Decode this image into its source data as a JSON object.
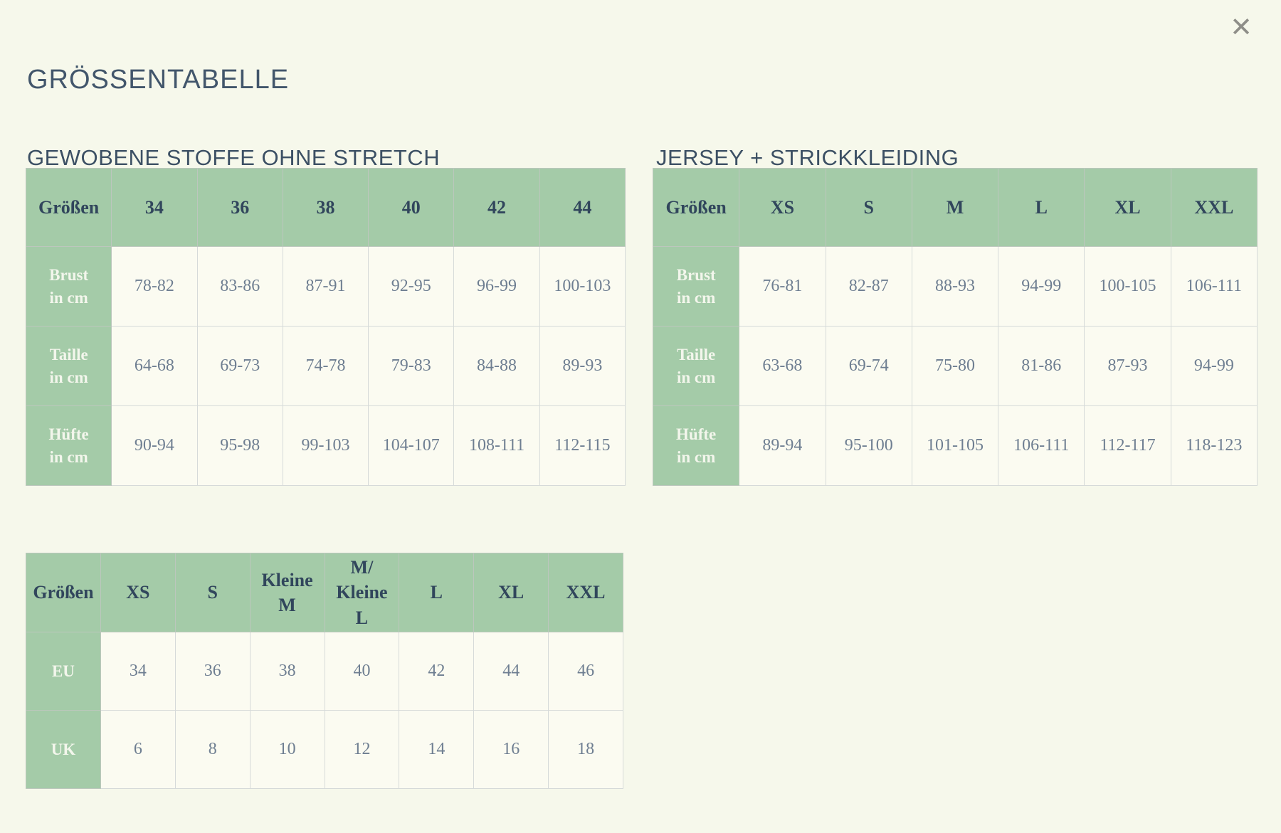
{
  "modal": {
    "title": "GRÖSSENTABELLE",
    "close_glyph": "✕"
  },
  "colors": {
    "header_green": "#a4cba8",
    "text_navy": "#33475c",
    "text_value": "#6e7e91",
    "background": "#f6f8eb"
  },
  "tables": [
    {
      "title": "GEWOBENE STOFFE OHNE STRETCH",
      "corner_label": "Größen",
      "columns": [
        "34",
        "36",
        "38",
        "40",
        "42",
        "44"
      ],
      "rows": [
        {
          "label": "Brust\nin cm",
          "values": [
            "78-82",
            "83-86",
            "87-91",
            "92-95",
            "96-99",
            "100-103"
          ]
        },
        {
          "label": "Taille\nin cm",
          "values": [
            "64-68",
            "69-73",
            "74-78",
            "79-83",
            "84-88",
            "89-93"
          ]
        },
        {
          "label": "Hüfte\nin cm",
          "values": [
            "90-94",
            "95-98",
            "99-103",
            "104-107",
            "108-111",
            "112-115"
          ]
        }
      ]
    },
    {
      "title": "JERSEY + STRICKKLEIDING",
      "corner_label": "Größen",
      "columns": [
        "XS",
        "S",
        "M",
        "L",
        "XL",
        "XXL"
      ],
      "rows": [
        {
          "label": "Brust\nin cm",
          "values": [
            "76-81",
            "82-87",
            "88-93",
            "94-99",
            "100-105",
            "106-111"
          ]
        },
        {
          "label": "Taille\nin cm",
          "values": [
            "63-68",
            "69-74",
            "75-80",
            "81-86",
            "87-93",
            "94-99"
          ]
        },
        {
          "label": "Hüfte\nin cm",
          "values": [
            "89-94",
            "95-100",
            "101-105",
            "106-111",
            "112-117",
            "118-123"
          ]
        }
      ]
    },
    {
      "corner_label": "Größen",
      "columns": [
        "XS",
        "S",
        "Kleine\nM",
        "M/\nKleine\nL",
        "L",
        "XL",
        "XXL"
      ],
      "rows": [
        {
          "label": "EU",
          "values": [
            "34",
            "36",
            "38",
            "40",
            "42",
            "44",
            "46"
          ]
        },
        {
          "label": "UK",
          "values": [
            "6",
            "8",
            "10",
            "12",
            "14",
            "16",
            "18"
          ]
        }
      ]
    }
  ]
}
